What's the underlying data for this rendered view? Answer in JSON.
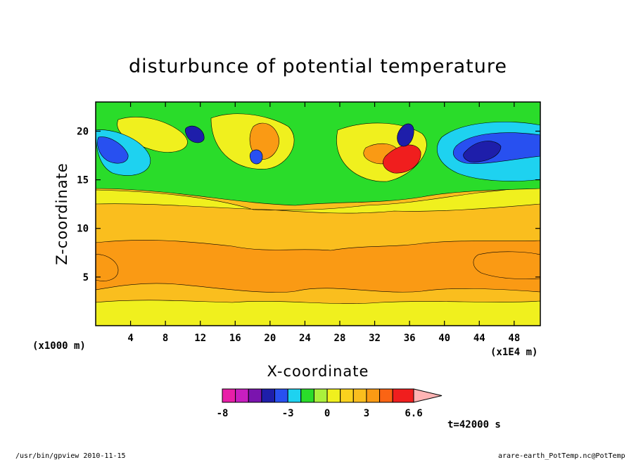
{
  "chart_data": {
    "type": "heatmap",
    "title": "disturbunce of potential temperature",
    "xlabel": "X-coordinate",
    "ylabel": "Z-coordinate",
    "x_unit_left": "(x1000 m)",
    "x_unit_right": "(x1E4 m)",
    "xlim": [
      0,
      51
    ],
    "ylim": [
      0,
      23
    ],
    "xticks": [
      4,
      8,
      12,
      16,
      20,
      24,
      28,
      32,
      36,
      40,
      44,
      48
    ],
    "yticks": [
      5,
      10,
      15,
      20
    ],
    "colorbar": {
      "levels": [
        -8,
        -7,
        -6,
        -5,
        -4,
        -3,
        -2,
        -1,
        0,
        1,
        2,
        3,
        4,
        5,
        6.6
      ],
      "colors": [
        "#e81ea8",
        "#c81ec0",
        "#7a14ae",
        "#1e1eaa",
        "#2850f0",
        "#1ed2f0",
        "#2adc2a",
        "#aaf03c",
        "#f0f01e",
        "#fad21e",
        "#fabe1e",
        "#fa9a14",
        "#fa6414",
        "#f01e1e",
        "#fa7a7a",
        "#ffb4b4"
      ],
      "labels": [
        {
          "value": -8,
          "text": "-8"
        },
        {
          "value": -3,
          "text": "-3"
        },
        {
          "value": 0,
          "text": "0"
        },
        {
          "value": 3,
          "text": "3"
        },
        {
          "value": 6.6,
          "text": "6.6"
        }
      ]
    },
    "time_label": "t=42000 s",
    "footer_left": "/usr/bin/gpview   2010-11-15",
    "footer_right": "arare-earth_PotTemp.nc@PotTemp"
  }
}
